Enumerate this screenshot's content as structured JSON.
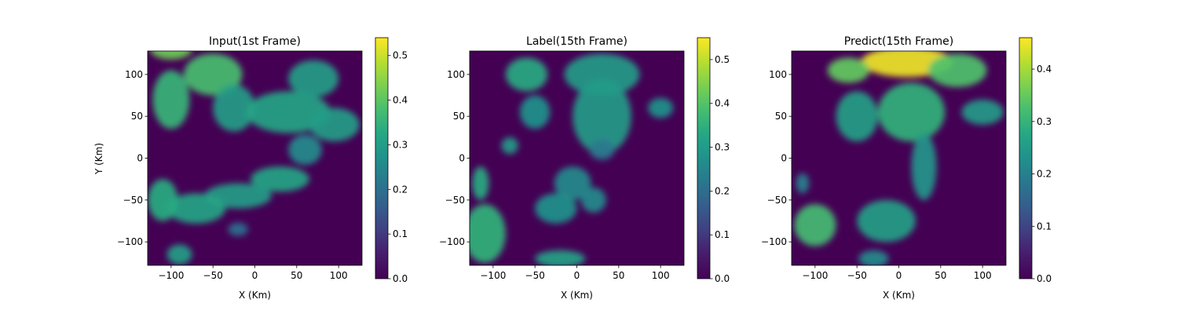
{
  "chart_data": [
    {
      "type": "heatmap",
      "title": "Input(1st Frame)",
      "xlabel": "X (Km)",
      "ylabel": "Y (Km)",
      "xlim": [
        -128,
        128
      ],
      "ylim": [
        -128,
        128
      ],
      "xticks": [
        -100,
        -50,
        0,
        50,
        100
      ],
      "yticks": [
        -100,
        -50,
        0,
        50,
        100
      ],
      "colormap": "viridis",
      "colorbar": {
        "min": 0,
        "max": 0.54,
        "ticks": [
          0.0,
          0.1,
          0.2,
          0.3,
          0.4,
          0.5
        ]
      },
      "blobs": [
        {
          "x": -50,
          "y": 100,
          "rx": 35,
          "ry": 25,
          "v": 0.38
        },
        {
          "x": -100,
          "y": 70,
          "rx": 22,
          "ry": 35,
          "v": 0.36
        },
        {
          "x": -25,
          "y": 60,
          "rx": 25,
          "ry": 28,
          "v": 0.3
        },
        {
          "x": 40,
          "y": 55,
          "rx": 50,
          "ry": 25,
          "v": 0.32
        },
        {
          "x": 70,
          "y": 95,
          "rx": 30,
          "ry": 22,
          "v": 0.3
        },
        {
          "x": 95,
          "y": 40,
          "rx": 30,
          "ry": 20,
          "v": 0.3
        },
        {
          "x": 60,
          "y": 10,
          "rx": 20,
          "ry": 18,
          "v": 0.26
        },
        {
          "x": 30,
          "y": -25,
          "rx": 35,
          "ry": 15,
          "v": 0.32
        },
        {
          "x": -20,
          "y": -45,
          "rx": 40,
          "ry": 15,
          "v": 0.3
        },
        {
          "x": -70,
          "y": -60,
          "rx": 35,
          "ry": 18,
          "v": 0.32
        },
        {
          "x": -110,
          "y": -50,
          "rx": 18,
          "ry": 25,
          "v": 0.34
        },
        {
          "x": -100,
          "y": 130,
          "rx": 25,
          "ry": 12,
          "v": 0.42
        },
        {
          "x": -90,
          "y": -115,
          "rx": 15,
          "ry": 12,
          "v": 0.3
        },
        {
          "x": -20,
          "y": -85,
          "rx": 12,
          "ry": 8,
          "v": 0.2
        }
      ]
    },
    {
      "type": "heatmap",
      "title": "Label(15th Frame)",
      "xlabel": "X (Km)",
      "ylabel": "",
      "xlim": [
        -128,
        128
      ],
      "ylim": [
        -128,
        128
      ],
      "xticks": [
        -100,
        -50,
        0,
        50,
        100
      ],
      "yticks": [
        -100,
        -50,
        0,
        50,
        100
      ],
      "colormap": "viridis",
      "colorbar": {
        "min": 0,
        "max": 0.55,
        "ticks": [
          0.0,
          0.1,
          0.2,
          0.3,
          0.4,
          0.5
        ]
      },
      "blobs": [
        {
          "x": -60,
          "y": 100,
          "rx": 25,
          "ry": 20,
          "v": 0.34
        },
        {
          "x": 30,
          "y": 100,
          "rx": 45,
          "ry": 25,
          "v": 0.3
        },
        {
          "x": 30,
          "y": 50,
          "rx": 35,
          "ry": 45,
          "v": 0.3
        },
        {
          "x": -50,
          "y": 55,
          "rx": 18,
          "ry": 20,
          "v": 0.28
        },
        {
          "x": 100,
          "y": 60,
          "rx": 15,
          "ry": 12,
          "v": 0.28
        },
        {
          "x": -5,
          "y": -30,
          "rx": 22,
          "ry": 20,
          "v": 0.26
        },
        {
          "x": -25,
          "y": -60,
          "rx": 25,
          "ry": 18,
          "v": 0.28
        },
        {
          "x": 20,
          "y": -50,
          "rx": 15,
          "ry": 15,
          "v": 0.26
        },
        {
          "x": -110,
          "y": -90,
          "rx": 25,
          "ry": 35,
          "v": 0.36
        },
        {
          "x": -115,
          "y": -30,
          "rx": 10,
          "ry": 20,
          "v": 0.34
        },
        {
          "x": -20,
          "y": -120,
          "rx": 30,
          "ry": 10,
          "v": 0.32
        },
        {
          "x": 30,
          "y": 10,
          "rx": 15,
          "ry": 12,
          "v": 0.22
        },
        {
          "x": -80,
          "y": 15,
          "rx": 10,
          "ry": 10,
          "v": 0.3
        }
      ]
    },
    {
      "type": "heatmap",
      "title": "Predict(15th Frame)",
      "xlabel": "X (Km)",
      "ylabel": "",
      "xlim": [
        -128,
        128
      ],
      "ylim": [
        -128,
        128
      ],
      "xticks": [
        -100,
        -50,
        0,
        50,
        100
      ],
      "yticks": [
        -100,
        -50,
        0,
        50,
        100
      ],
      "colormap": "viridis",
      "colorbar": {
        "min": 0,
        "max": 0.46,
        "ticks": [
          0.0,
          0.1,
          0.2,
          0.3,
          0.4
        ]
      },
      "blobs": [
        {
          "x": 10,
          "y": 115,
          "rx": 55,
          "ry": 18,
          "v": 0.45
        },
        {
          "x": -60,
          "y": 105,
          "rx": 25,
          "ry": 15,
          "v": 0.35
        },
        {
          "x": 70,
          "y": 105,
          "rx": 35,
          "ry": 20,
          "v": 0.33
        },
        {
          "x": 15,
          "y": 55,
          "rx": 40,
          "ry": 35,
          "v": 0.3
        },
        {
          "x": -50,
          "y": 50,
          "rx": 25,
          "ry": 30,
          "v": 0.26
        },
        {
          "x": 30,
          "y": -10,
          "rx": 15,
          "ry": 40,
          "v": 0.24
        },
        {
          "x": 100,
          "y": 55,
          "rx": 25,
          "ry": 15,
          "v": 0.25
        },
        {
          "x": -100,
          "y": -80,
          "rx": 25,
          "ry": 25,
          "v": 0.32
        },
        {
          "x": -15,
          "y": -75,
          "rx": 35,
          "ry": 25,
          "v": 0.26
        },
        {
          "x": -30,
          "y": -120,
          "rx": 18,
          "ry": 10,
          "v": 0.22
        },
        {
          "x": -115,
          "y": -30,
          "rx": 8,
          "ry": 12,
          "v": 0.2
        }
      ]
    }
  ]
}
